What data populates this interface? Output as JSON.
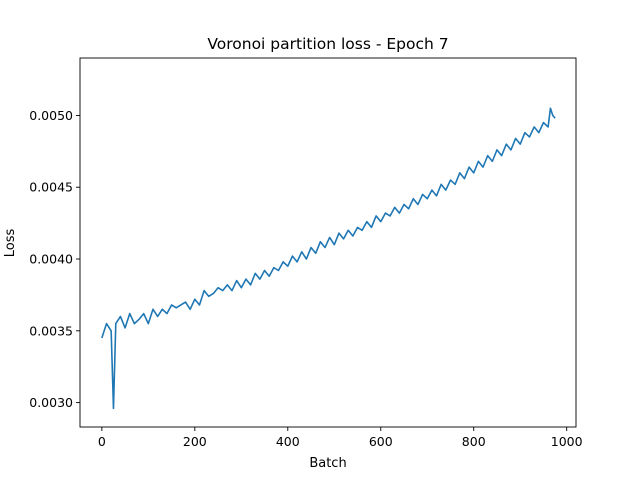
{
  "chart_data": {
    "type": "line",
    "title": "Voronoi partition loss - Epoch 7",
    "xlabel": "Batch",
    "ylabel": "Loss",
    "xlim": [
      -47,
      1020
    ],
    "ylim": [
      0.00283,
      0.0054
    ],
    "x_ticks": [
      0,
      200,
      400,
      600,
      800,
      1000
    ],
    "x_tick_labels": [
      "0",
      "200",
      "400",
      "600",
      "800",
      "1000"
    ],
    "y_ticks": [
      0.003,
      0.0035,
      0.004,
      0.0045,
      0.005
    ],
    "y_tick_labels": [
      "0.0030",
      "0.0035",
      "0.0040",
      "0.0045",
      "0.0050"
    ],
    "grid": false,
    "line_color": "#1f77b4",
    "series": [
      {
        "x": [
          0,
          10,
          20,
          25,
          30,
          40,
          50,
          60,
          70,
          80,
          90,
          100,
          110,
          120,
          130,
          140,
          150,
          160,
          170,
          180,
          190,
          200,
          210,
          220,
          230,
          240,
          250,
          260,
          270,
          280,
          290,
          300,
          310,
          320,
          330,
          340,
          350,
          360,
          370,
          380,
          390,
          400,
          410,
          420,
          430,
          440,
          450,
          460,
          470,
          480,
          490,
          500,
          510,
          520,
          530,
          540,
          550,
          560,
          570,
          580,
          590,
          600,
          610,
          620,
          630,
          640,
          650,
          660,
          670,
          680,
          690,
          700,
          710,
          720,
          730,
          740,
          750,
          760,
          770,
          780,
          790,
          800,
          810,
          820,
          830,
          840,
          850,
          860,
          870,
          880,
          890,
          900,
          910,
          920,
          930,
          940,
          950,
          960,
          965,
          970,
          975
        ],
        "y": [
          0.00345,
          0.00355,
          0.0035,
          0.00296,
          0.00355,
          0.0036,
          0.00352,
          0.00362,
          0.00355,
          0.00358,
          0.00362,
          0.00355,
          0.00365,
          0.0036,
          0.00365,
          0.00362,
          0.00368,
          0.00366,
          0.00368,
          0.0037,
          0.00365,
          0.00372,
          0.00368,
          0.00378,
          0.00374,
          0.00376,
          0.0038,
          0.00378,
          0.00382,
          0.00378,
          0.00385,
          0.0038,
          0.00386,
          0.00382,
          0.0039,
          0.00386,
          0.00392,
          0.00388,
          0.00394,
          0.00392,
          0.00398,
          0.00395,
          0.00402,
          0.00398,
          0.00405,
          0.004,
          0.00408,
          0.00404,
          0.00412,
          0.00408,
          0.00415,
          0.0041,
          0.00418,
          0.00414,
          0.0042,
          0.00416,
          0.00422,
          0.0042,
          0.00426,
          0.00422,
          0.0043,
          0.00426,
          0.00432,
          0.0043,
          0.00436,
          0.00432,
          0.00438,
          0.00435,
          0.00442,
          0.00438,
          0.00445,
          0.00442,
          0.00448,
          0.00444,
          0.00452,
          0.00448,
          0.00455,
          0.00452,
          0.0046,
          0.00456,
          0.00464,
          0.0046,
          0.00468,
          0.00464,
          0.00472,
          0.00468,
          0.00476,
          0.00472,
          0.0048,
          0.00476,
          0.00484,
          0.0048,
          0.00488,
          0.00485,
          0.00492,
          0.00488,
          0.00495,
          0.00492,
          0.00505,
          0.005,
          0.00498
        ]
      }
    ]
  }
}
